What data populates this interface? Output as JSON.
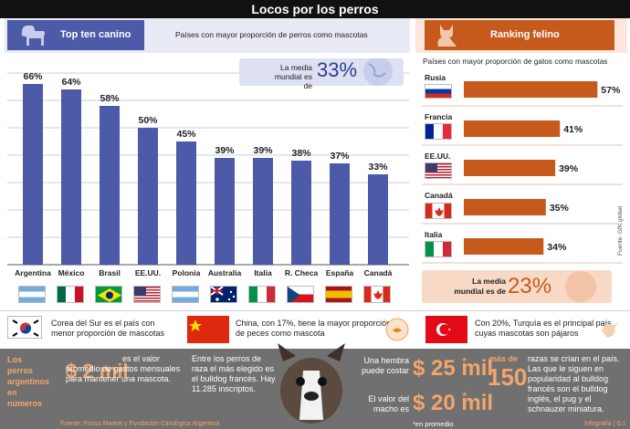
{
  "title": "Locos por los perros",
  "dogs": {
    "tab_label": "Top ten canino",
    "subtitle": "Países con mayor proporción de perros como mascotas",
    "average_text": "La media mundial es de",
    "average_value": "33%"
  },
  "cats": {
    "tab_label": "Ranking felino",
    "subtitle": "Países con mayor proporción de gatos como mascotas",
    "average_text": "La media mundial es de",
    "average_value": "23%"
  },
  "credit": "Fuente: GfK global",
  "chart_data": [
    {
      "type": "bar",
      "categories": [
        "Argentina",
        "México",
        "Brasil",
        "EE.UU.",
        "Polonia",
        "Australia",
        "Italia",
        "R. Checa",
        "España",
        "Canadá"
      ],
      "values": [
        66,
        64,
        58,
        50,
        45,
        39,
        39,
        38,
        37,
        33
      ],
      "labels": [
        "66%",
        "64%",
        "58%",
        "50%",
        "45%",
        "39%",
        "39%",
        "38%",
        "37%",
        "33%"
      ],
      "color": "#4d5aa8",
      "ylim": [
        0,
        70
      ]
    },
    {
      "type": "bar",
      "orientation": "horizontal",
      "categories": [
        "Rusia",
        "Francia",
        "EE.UU.",
        "Canadá",
        "Italia"
      ],
      "values": [
        57,
        41,
        39,
        35,
        34
      ],
      "labels": [
        "57%",
        "41%",
        "39%",
        "35%",
        "34%"
      ],
      "color": "#c65a1c",
      "xlim": [
        0,
        60
      ]
    }
  ],
  "facts": [
    {
      "text": "Corea del Sur es el país con menor proporción de mascotas",
      "icon": "korea-flag-icon"
    },
    {
      "text": "China, con 17%, tiene la mayor proporción de peces como mascota",
      "icon": "china-flag-icon"
    },
    {
      "text": "Con 20%, Turquía es el principal país cuyas mascotas son pájaros",
      "icon": "turkey-flag-icon"
    }
  ],
  "bottom": {
    "intro": "Los perros argentinos en números",
    "spend_value": "$ 2 mil",
    "spend_text": "es el valor promedio de gastos mensuales para mantener una mascota.",
    "breed_text": "Entre los perros de raza el más elegido es el bulldog francés. Hay 11.285 inscriptos.",
    "female_text": "Una hembra puede costar",
    "female_value": "$ 25 mil",
    "male_text": "El valor del macho es",
    "male_value": "$ 20 mil",
    "footnote": "*en promedio",
    "breeds_prefix": "más de",
    "breeds_value": "150",
    "breeds_text": "razas se crían en el país. Las que le siguen en popularidad al bulldog francés son el bulldog inglés, el pug y el schnauzer miniatura.",
    "source": "Fuente: Focus Market y Fundación Cinológica Argentina",
    "infographic": "Infografía | G.I."
  }
}
